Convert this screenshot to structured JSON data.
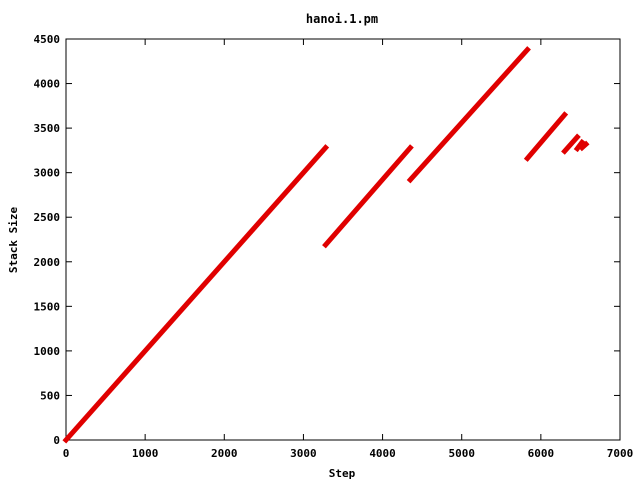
{
  "chart_data": {
    "type": "line",
    "title": "hanoi.1.pm",
    "xlabel": "Step",
    "ylabel": "Stack Size",
    "xlim": [
      0,
      7000
    ],
    "ylim": [
      0,
      4500
    ],
    "xticks": [
      0,
      1000,
      2000,
      3000,
      4000,
      5000,
      6000,
      7000
    ],
    "yticks": [
      0,
      500,
      1000,
      1500,
      2000,
      2500,
      3000,
      3500,
      4000,
      4500
    ],
    "grid": false,
    "legend": "none",
    "series_color": "#e00000",
    "segments": [
      {
        "x": [
          0,
          3280
        ],
        "y": [
          0,
          3280
        ]
      },
      {
        "x": [
          3280,
          4350
        ],
        "y": [
          2190,
          3280
        ]
      },
      {
        "x": [
          4350,
          5830
        ],
        "y": [
          2920,
          4380
        ]
      },
      {
        "x": [
          5830,
          6300
        ],
        "y": [
          3160,
          3650
        ]
      },
      {
        "x": [
          6300,
          6460
        ],
        "y": [
          3240,
          3400
        ]
      },
      {
        "x": [
          6460,
          6520
        ],
        "y": [
          3270,
          3340
        ]
      },
      {
        "x": [
          6520,
          6570
        ],
        "y": [
          3280,
          3320
        ]
      }
    ]
  }
}
